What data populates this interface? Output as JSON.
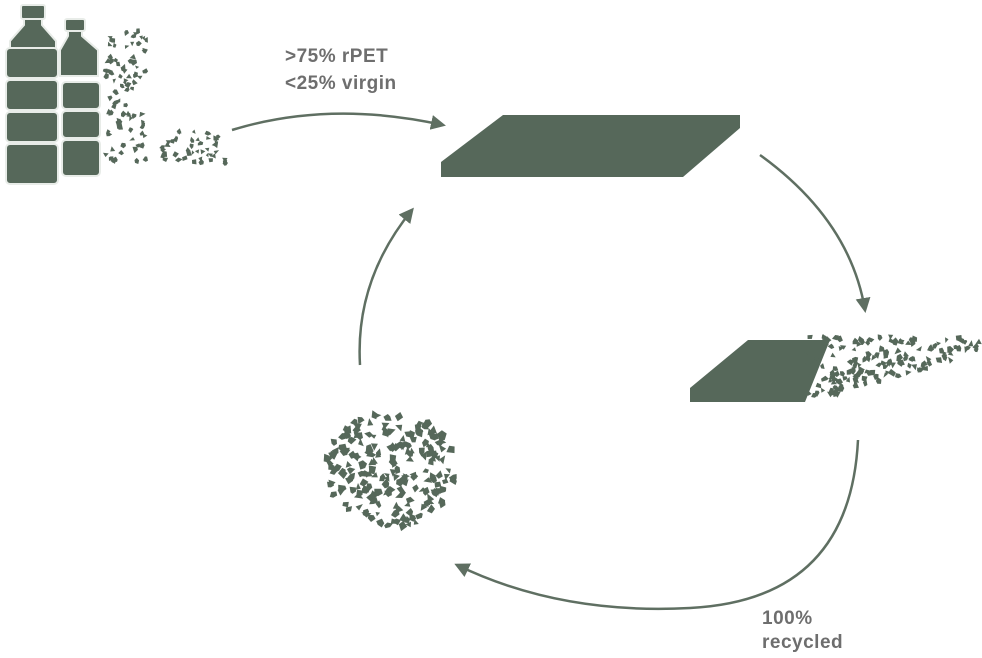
{
  "input_label": {
    "lines": [
      ">75% rPET",
      "<25% virgin"
    ]
  },
  "output_label": {
    "lines": [
      "100%",
      "recycled"
    ]
  }
}
